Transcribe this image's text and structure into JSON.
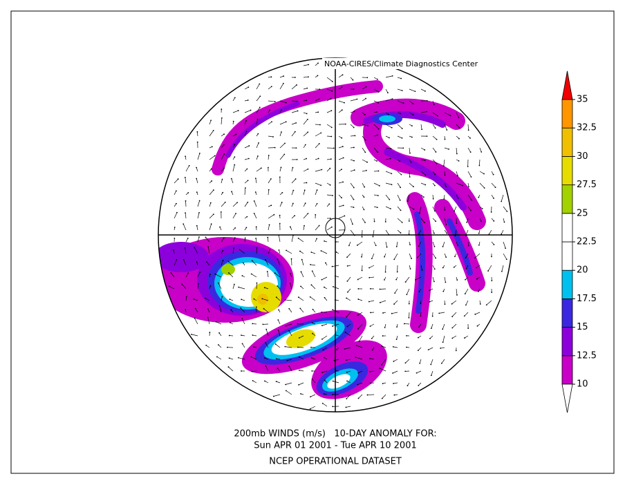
{
  "credit": "NOAA-CIRES/Climate Diagnostics Center",
  "caption": {
    "line1": "200mb WINDS (m/s)   10-DAY ANOMALY FOR:",
    "line2": "Sun APR 01 2001 - Tue APR 10 2001",
    "line3": "NCEP OPERATIONAL DATASET"
  },
  "legend": {
    "ticks": [
      10,
      12.5,
      15,
      17.5,
      20,
      22.5,
      25,
      27.5,
      30,
      32.5,
      35
    ],
    "colors": [
      "#c800c8",
      "#8c00dc",
      "#3a28e0",
      "#00c0f0",
      "#ffffff",
      "#ffffff",
      "#a2d200",
      "#e6dc00",
      "#f0c000",
      "#ff9600"
    ],
    "over_color": "#f00000",
    "under_color": "#ffffff"
  }
}
